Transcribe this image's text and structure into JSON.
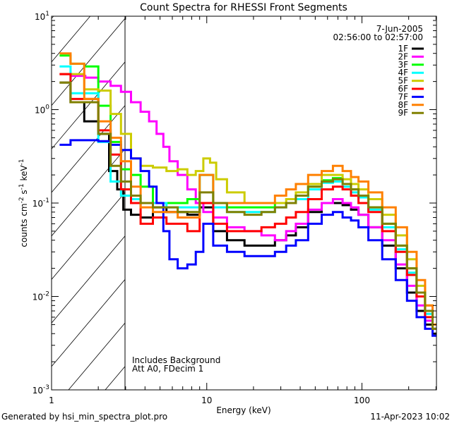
{
  "chart_data": {
    "type": "line",
    "title": "Count Spectra for RHESSI Front Segments",
    "xlabel": "Energy (keV)",
    "ylabel": "counts cm^-2 s^-1 keV^-1",
    "xscale": "log",
    "yscale": "log",
    "xlim": [
      1,
      302
    ],
    "ylim": [
      0.001,
      10
    ],
    "x_ticks": [
      "1",
      "10",
      "100"
    ],
    "y_ticks": [
      {
        "base": "10",
        "exp": "1"
      },
      {
        "base": "10",
        "exp": "0"
      },
      {
        "base": "10",
        "exp": "-1"
      },
      {
        "base": "10",
        "exp": "-2"
      },
      {
        "base": "10",
        "exp": "-3"
      }
    ],
    "date": "7-Jun-2005",
    "time_range": "02:56:00 to 02:57:00",
    "annotations": [
      "Includes Background",
      "Att A0, FDecim 1"
    ],
    "excluded_region": {
      "from_keV": 1,
      "to_keV": 3,
      "style": "hatched"
    },
    "legend_position": "top-right",
    "series": [
      {
        "name": "1F",
        "color": "#000000",
        "points": [
          [
            1.2,
            1.95
          ],
          [
            1.45,
            1.2
          ],
          [
            1.8,
            0.75
          ],
          [
            2.2,
            0.55
          ],
          [
            2.5,
            0.22
          ],
          [
            2.8,
            0.14
          ],
          [
            3.0,
            0.085
          ],
          [
            3.5,
            0.075
          ],
          [
            4,
            0.07
          ],
          [
            5,
            0.09
          ],
          [
            6,
            0.08
          ],
          [
            7,
            0.08
          ],
          [
            8,
            0.075
          ],
          [
            10,
            0.09
          ],
          [
            12,
            0.05
          ],
          [
            15,
            0.04
          ],
          [
            20,
            0.035
          ],
          [
            25,
            0.035
          ],
          [
            30,
            0.04
          ],
          [
            35,
            0.045
          ],
          [
            40,
            0.055
          ],
          [
            50,
            0.08
          ],
          [
            60,
            0.1
          ],
          [
            70,
            0.1
          ],
          [
            80,
            0.095
          ],
          [
            90,
            0.085
          ],
          [
            100,
            0.075
          ],
          [
            120,
            0.055
          ],
          [
            150,
            0.035
          ],
          [
            180,
            0.02
          ],
          [
            210,
            0.011
          ],
          [
            240,
            0.007
          ],
          [
            270,
            0.005
          ],
          [
            300,
            0.004
          ]
        ]
      },
      {
        "name": "2F",
        "color": "#ff00ff",
        "points": [
          [
            1.2,
            2.4
          ],
          [
            1.5,
            2.3
          ],
          [
            1.8,
            2.2
          ],
          [
            2.2,
            2.0
          ],
          [
            2.6,
            1.8
          ],
          [
            3.0,
            1.55
          ],
          [
            3.5,
            1.2
          ],
          [
            4,
            0.95
          ],
          [
            4.5,
            0.75
          ],
          [
            5,
            0.55
          ],
          [
            5.5,
            0.4
          ],
          [
            6,
            0.28
          ],
          [
            7,
            0.2
          ],
          [
            8,
            0.14
          ],
          [
            9,
            0.1
          ],
          [
            10,
            0.08
          ],
          [
            12,
            0.07
          ],
          [
            15,
            0.055
          ],
          [
            20,
            0.05
          ],
          [
            25,
            0.045
          ],
          [
            30,
            0.04
          ],
          [
            35,
            0.05
          ],
          [
            40,
            0.06
          ],
          [
            50,
            0.085
          ],
          [
            60,
            0.1
          ],
          [
            70,
            0.11
          ],
          [
            80,
            0.1
          ],
          [
            90,
            0.09
          ],
          [
            100,
            0.075
          ],
          [
            120,
            0.055
          ],
          [
            150,
            0.04
          ],
          [
            180,
            0.022
          ],
          [
            210,
            0.013
          ],
          [
            240,
            0.008
          ],
          [
            270,
            0.0055
          ],
          [
            300,
            0.0045
          ]
        ]
      },
      {
        "name": "3F",
        "color": "#00ff00",
        "points": [
          [
            1.2,
            3.8
          ],
          [
            1.45,
            3.1
          ],
          [
            1.8,
            2.9
          ],
          [
            2.2,
            1.1
          ],
          [
            2.6,
            0.45
          ],
          [
            3.0,
            0.23
          ],
          [
            3.5,
            0.2
          ],
          [
            4,
            0.15
          ],
          [
            5,
            0.1
          ],
          [
            6,
            0.1
          ],
          [
            7,
            0.1
          ],
          [
            8,
            0.11
          ],
          [
            10,
            0.2
          ],
          [
            12,
            0.1
          ],
          [
            15,
            0.09
          ],
          [
            20,
            0.09
          ],
          [
            25,
            0.09
          ],
          [
            30,
            0.1
          ],
          [
            35,
            0.1
          ],
          [
            40,
            0.12
          ],
          [
            50,
            0.15
          ],
          [
            60,
            0.175
          ],
          [
            70,
            0.185
          ],
          [
            80,
            0.16
          ],
          [
            90,
            0.14
          ],
          [
            100,
            0.12
          ],
          [
            120,
            0.09
          ],
          [
            150,
            0.06
          ],
          [
            180,
            0.035
          ],
          [
            210,
            0.02
          ],
          [
            240,
            0.011
          ],
          [
            270,
            0.007
          ],
          [
            300,
            0.0045
          ]
        ]
      },
      {
        "name": "4F",
        "color": "#00ffff",
        "points": [
          [
            1.2,
            2.9
          ],
          [
            1.45,
            1.5
          ],
          [
            1.8,
            1.5
          ],
          [
            2.2,
            0.45
          ],
          [
            2.6,
            0.17
          ],
          [
            3.0,
            0.12
          ],
          [
            3.5,
            0.11
          ],
          [
            4,
            0.1
          ],
          [
            5,
            0.1
          ],
          [
            6,
            0.09
          ],
          [
            7,
            0.09
          ],
          [
            8,
            0.09
          ],
          [
            10,
            0.2
          ],
          [
            12,
            0.09
          ],
          [
            15,
            0.08
          ],
          [
            20,
            0.08
          ],
          [
            25,
            0.08
          ],
          [
            30,
            0.09
          ],
          [
            35,
            0.1
          ],
          [
            40,
            0.11
          ],
          [
            50,
            0.14
          ],
          [
            60,
            0.165
          ],
          [
            70,
            0.17
          ],
          [
            80,
            0.15
          ],
          [
            90,
            0.13
          ],
          [
            100,
            0.115
          ],
          [
            120,
            0.085
          ],
          [
            150,
            0.055
          ],
          [
            180,
            0.032
          ],
          [
            210,
            0.018
          ],
          [
            240,
            0.01
          ],
          [
            270,
            0.0065
          ],
          [
            300,
            0.0045
          ]
        ]
      },
      {
        "name": "5F",
        "color": "#cccc00",
        "points": [
          [
            1.2,
            2.4
          ],
          [
            1.45,
            2.4
          ],
          [
            1.8,
            1.65
          ],
          [
            2.2,
            1.6
          ],
          [
            2.6,
            0.9
          ],
          [
            3.0,
            0.55
          ],
          [
            3.5,
            0.3
          ],
          [
            4,
            0.25
          ],
          [
            5,
            0.24
          ],
          [
            6,
            0.22
          ],
          [
            7,
            0.23
          ],
          [
            8,
            0.2
          ],
          [
            9,
            0.22
          ],
          [
            10,
            0.3
          ],
          [
            11,
            0.27
          ],
          [
            12,
            0.18
          ],
          [
            15,
            0.13
          ],
          [
            20,
            0.1
          ],
          [
            25,
            0.1
          ],
          [
            30,
            0.1
          ],
          [
            35,
            0.11
          ],
          [
            40,
            0.13
          ],
          [
            50,
            0.16
          ],
          [
            60,
            0.2
          ],
          [
            70,
            0.2
          ],
          [
            80,
            0.18
          ],
          [
            90,
            0.16
          ],
          [
            100,
            0.14
          ],
          [
            120,
            0.11
          ],
          [
            150,
            0.075
          ],
          [
            180,
            0.045
          ],
          [
            210,
            0.025
          ],
          [
            240,
            0.013
          ],
          [
            270,
            0.008
          ],
          [
            300,
            0.005
          ]
        ]
      },
      {
        "name": "6F",
        "color": "#ff0000",
        "points": [
          [
            1.2,
            2.4
          ],
          [
            1.45,
            1.3
          ],
          [
            1.8,
            1.3
          ],
          [
            2.2,
            0.6
          ],
          [
            2.6,
            0.33
          ],
          [
            3.0,
            0.14
          ],
          [
            3.5,
            0.1
          ],
          [
            4,
            0.06
          ],
          [
            5,
            0.07
          ],
          [
            6,
            0.06
          ],
          [
            7,
            0.06
          ],
          [
            8,
            0.05
          ],
          [
            10,
            0.1
          ],
          [
            12,
            0.06
          ],
          [
            15,
            0.05
          ],
          [
            20,
            0.05
          ],
          [
            25,
            0.055
          ],
          [
            30,
            0.06
          ],
          [
            35,
            0.07
          ],
          [
            40,
            0.08
          ],
          [
            50,
            0.11
          ],
          [
            60,
            0.14
          ],
          [
            70,
            0.15
          ],
          [
            80,
            0.14
          ],
          [
            90,
            0.12
          ],
          [
            100,
            0.1
          ],
          [
            120,
            0.08
          ],
          [
            150,
            0.05
          ],
          [
            180,
            0.03
          ],
          [
            210,
            0.017
          ],
          [
            240,
            0.01
          ],
          [
            270,
            0.006
          ],
          [
            300,
            0.0045
          ]
        ]
      },
      {
        "name": "7F",
        "color": "#0000ff",
        "points": [
          [
            1.2,
            0.42
          ],
          [
            1.45,
            0.47
          ],
          [
            1.8,
            0.47
          ],
          [
            2.2,
            0.46
          ],
          [
            2.6,
            0.42
          ],
          [
            3.0,
            0.37
          ],
          [
            3.5,
            0.3
          ],
          [
            4,
            0.22
          ],
          [
            4.5,
            0.15
          ],
          [
            5,
            0.1
          ],
          [
            5.5,
            0.05
          ],
          [
            6,
            0.025
          ],
          [
            7,
            0.02
          ],
          [
            8,
            0.022
          ],
          [
            9,
            0.03
          ],
          [
            10,
            0.06
          ],
          [
            12,
            0.035
          ],
          [
            15,
            0.03
          ],
          [
            20,
            0.027
          ],
          [
            25,
            0.027
          ],
          [
            30,
            0.03
          ],
          [
            35,
            0.035
          ],
          [
            40,
            0.04
          ],
          [
            50,
            0.06
          ],
          [
            60,
            0.075
          ],
          [
            70,
            0.08
          ],
          [
            80,
            0.07
          ],
          [
            90,
            0.065
          ],
          [
            100,
            0.055
          ],
          [
            120,
            0.04
          ],
          [
            150,
            0.025
          ],
          [
            180,
            0.015
          ],
          [
            210,
            0.009
          ],
          [
            240,
            0.006
          ],
          [
            270,
            0.0045
          ],
          [
            300,
            0.0038
          ]
        ]
      },
      {
        "name": "8F",
        "color": "#ff8000",
        "points": [
          [
            1.2,
            4.0
          ],
          [
            1.45,
            3.1
          ],
          [
            1.8,
            1.3
          ],
          [
            2.2,
            0.75
          ],
          [
            2.6,
            0.5
          ],
          [
            3.0,
            0.28
          ],
          [
            3.5,
            0.15
          ],
          [
            4,
            0.09
          ],
          [
            5,
            0.08
          ],
          [
            6,
            0.08
          ],
          [
            7,
            0.07
          ],
          [
            8,
            0.07
          ],
          [
            10,
            0.2
          ],
          [
            12,
            0.1
          ],
          [
            15,
            0.1
          ],
          [
            20,
            0.1
          ],
          [
            25,
            0.1
          ],
          [
            30,
            0.12
          ],
          [
            35,
            0.14
          ],
          [
            40,
            0.16
          ],
          [
            50,
            0.2
          ],
          [
            60,
            0.22
          ],
          [
            70,
            0.25
          ],
          [
            80,
            0.22
          ],
          [
            90,
            0.19
          ],
          [
            100,
            0.17
          ],
          [
            120,
            0.13
          ],
          [
            150,
            0.09
          ],
          [
            180,
            0.055
          ],
          [
            210,
            0.03
          ],
          [
            240,
            0.015
          ],
          [
            270,
            0.008
          ],
          [
            300,
            0.005
          ]
        ]
      },
      {
        "name": "9F",
        "color": "#808000",
        "points": [
          [
            1.2,
            1.95
          ],
          [
            1.45,
            1.2
          ],
          [
            1.8,
            1.2
          ],
          [
            2.2,
            0.55
          ],
          [
            2.6,
            0.25
          ],
          [
            3.0,
            0.17
          ],
          [
            3.5,
            0.12
          ],
          [
            4,
            0.1
          ],
          [
            5,
            0.09
          ],
          [
            6,
            0.09
          ],
          [
            7,
            0.08
          ],
          [
            8,
            0.08
          ],
          [
            10,
            0.13
          ],
          [
            12,
            0.1
          ],
          [
            15,
            0.08
          ],
          [
            20,
            0.075
          ],
          [
            25,
            0.08
          ],
          [
            30,
            0.09
          ],
          [
            35,
            0.1
          ],
          [
            40,
            0.12
          ],
          [
            50,
            0.15
          ],
          [
            60,
            0.17
          ],
          [
            70,
            0.18
          ],
          [
            80,
            0.16
          ],
          [
            90,
            0.14
          ],
          [
            100,
            0.12
          ],
          [
            120,
            0.09
          ],
          [
            150,
            0.06
          ],
          [
            180,
            0.035
          ],
          [
            210,
            0.02
          ],
          [
            240,
            0.011
          ],
          [
            270,
            0.007
          ],
          [
            300,
            0.0045
          ]
        ]
      }
    ]
  },
  "footer": {
    "generated_by": "Generated by hsi_min_spectra_plot.pro",
    "timestamp": "11-Apr-2023 10:02"
  }
}
